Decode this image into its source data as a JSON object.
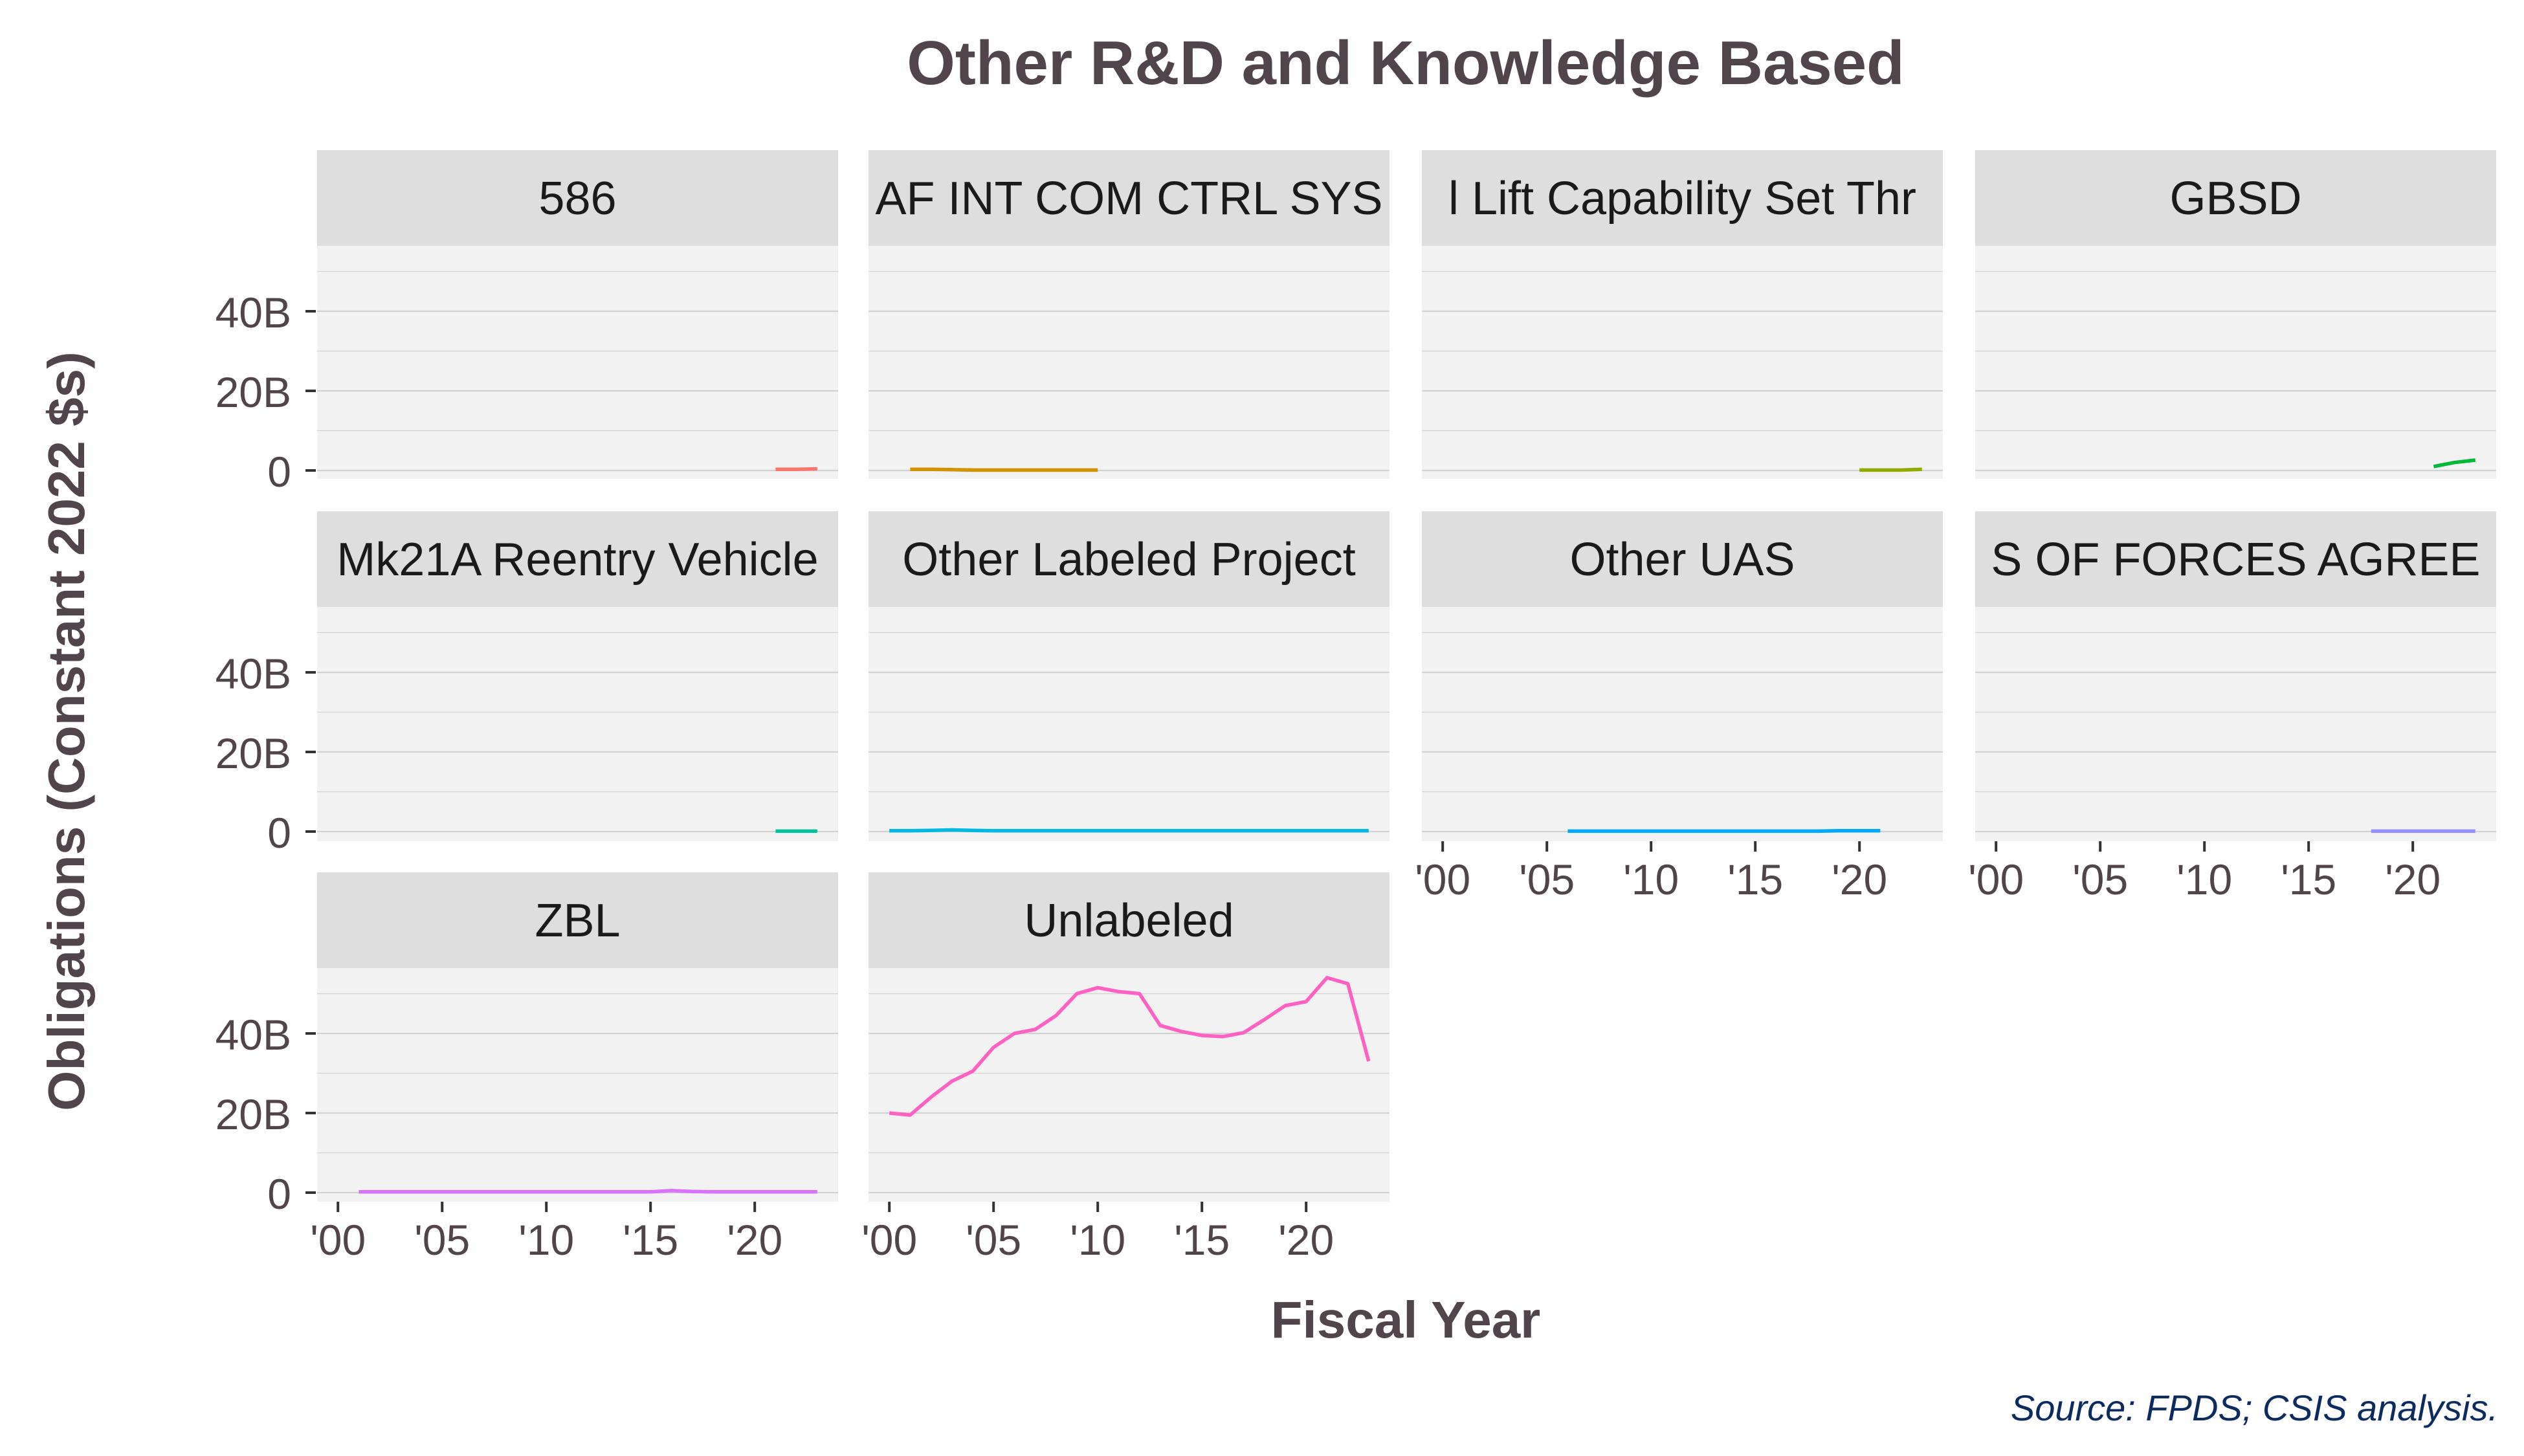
{
  "chart_data": {
    "type": "line",
    "title": "Other R&D and Knowledge Based",
    "xlabel": "Fiscal Year",
    "ylabel": "Obligations (Constant 2022 $s)",
    "caption": "Source: FPDS; CSIS analysis.",
    "xlim": [
      1999,
      2024
    ],
    "ylim": [
      0,
      60
    ],
    "x_ticks": [
      {
        "value": 2000,
        "label": "'00"
      },
      {
        "value": 2005,
        "label": "'05"
      },
      {
        "value": 2010,
        "label": "'10"
      },
      {
        "value": 2015,
        "label": "'15"
      },
      {
        "value": 2020,
        "label": "'20"
      }
    ],
    "y_ticks": [
      {
        "value": 0,
        "label": "0"
      },
      {
        "value": 20,
        "label": "20B"
      },
      {
        "value": 40,
        "label": "40B"
      }
    ],
    "grid": true,
    "legend": "none",
    "panels": [
      {
        "label": "586",
        "color": "#F8766D",
        "x": [
          2021,
          2022,
          2023
        ],
        "values": [
          0.3,
          0.3,
          0.4
        ]
      },
      {
        "label": "AF INT COM CTRL SYS",
        "color": "#D39200",
        "x": [
          2001,
          2002,
          2003,
          2004,
          2005,
          2006,
          2007,
          2008,
          2009,
          2010
        ],
        "values": [
          0.3,
          0.3,
          0.2,
          0.1,
          0.1,
          0.1,
          0.1,
          0.1,
          0.1,
          0.1
        ]
      },
      {
        "label": "l Lift Capability Set Thr",
        "color": "#93AA00",
        "x": [
          2020,
          2021,
          2022,
          2023
        ],
        "values": [
          0.1,
          0.1,
          0.1,
          0.3
        ]
      },
      {
        "label": "GBSD",
        "color": "#00BA38",
        "x": [
          2021,
          2022,
          2023
        ],
        "values": [
          1.0,
          2.0,
          2.6
        ]
      },
      {
        "label": "Mk21A Reentry Vehicle",
        "color": "#00C19F",
        "x": [
          2021,
          2022,
          2023
        ],
        "values": [
          0.1,
          0.1,
          0.1
        ]
      },
      {
        "label": "Other Labeled Project",
        "color": "#00B9E3",
        "x": [
          2000,
          2001,
          2002,
          2003,
          2004,
          2005,
          2006,
          2007,
          2008,
          2009,
          2010,
          2011,
          2012,
          2013,
          2014,
          2015,
          2016,
          2017,
          2018,
          2019,
          2020,
          2021,
          2022,
          2023
        ],
        "values": [
          0.2,
          0.2,
          0.3,
          0.4,
          0.3,
          0.2,
          0.2,
          0.2,
          0.2,
          0.2,
          0.2,
          0.2,
          0.2,
          0.2,
          0.2,
          0.2,
          0.2,
          0.2,
          0.2,
          0.2,
          0.2,
          0.2,
          0.2,
          0.2
        ]
      },
      {
        "label": "Other UAS",
        "color": "#00A9FF",
        "x": [
          2006,
          2007,
          2008,
          2009,
          2010,
          2011,
          2012,
          2013,
          2014,
          2015,
          2016,
          2017,
          2018,
          2019,
          2020,
          2021
        ],
        "values": [
          0.1,
          0.1,
          0.1,
          0.1,
          0.1,
          0.1,
          0.1,
          0.1,
          0.1,
          0.1,
          0.1,
          0.1,
          0.1,
          0.2,
          0.2,
          0.2
        ]
      },
      {
        "label": "S OF FORCES AGREE",
        "color": "#9590FF",
        "x": [
          2018,
          2019,
          2020,
          2021,
          2022,
          2023
        ],
        "values": [
          0.1,
          0.1,
          0.1,
          0.1,
          0.1,
          0.1
        ]
      },
      {
        "label": "ZBL",
        "color": "#DB72FB",
        "x": [
          2001,
          2002,
          2003,
          2004,
          2005,
          2006,
          2007,
          2008,
          2009,
          2010,
          2011,
          2012,
          2013,
          2014,
          2015,
          2016,
          2017,
          2018,
          2019,
          2020,
          2021,
          2022,
          2023
        ],
        "values": [
          0.2,
          0.2,
          0.2,
          0.2,
          0.2,
          0.2,
          0.2,
          0.2,
          0.2,
          0.2,
          0.2,
          0.2,
          0.2,
          0.2,
          0.2,
          0.5,
          0.3,
          0.2,
          0.2,
          0.2,
          0.2,
          0.2,
          0.2
        ]
      },
      {
        "label": "Unlabeled",
        "color": "#FF61C3",
        "x": [
          2000,
          2001,
          2002,
          2003,
          2004,
          2005,
          2006,
          2007,
          2008,
          2009,
          2010,
          2011,
          2012,
          2013,
          2014,
          2015,
          2016,
          2017,
          2018,
          2019,
          2020,
          2021,
          2022,
          2023
        ],
        "values": [
          20,
          19.5,
          24,
          28,
          30.5,
          36.5,
          40,
          41,
          44.5,
          50,
          51.5,
          50.5,
          50,
          42,
          40.5,
          39.5,
          39.2,
          40.2,
          43.5,
          47,
          48,
          54,
          52.5,
          33
        ]
      }
    ]
  }
}
